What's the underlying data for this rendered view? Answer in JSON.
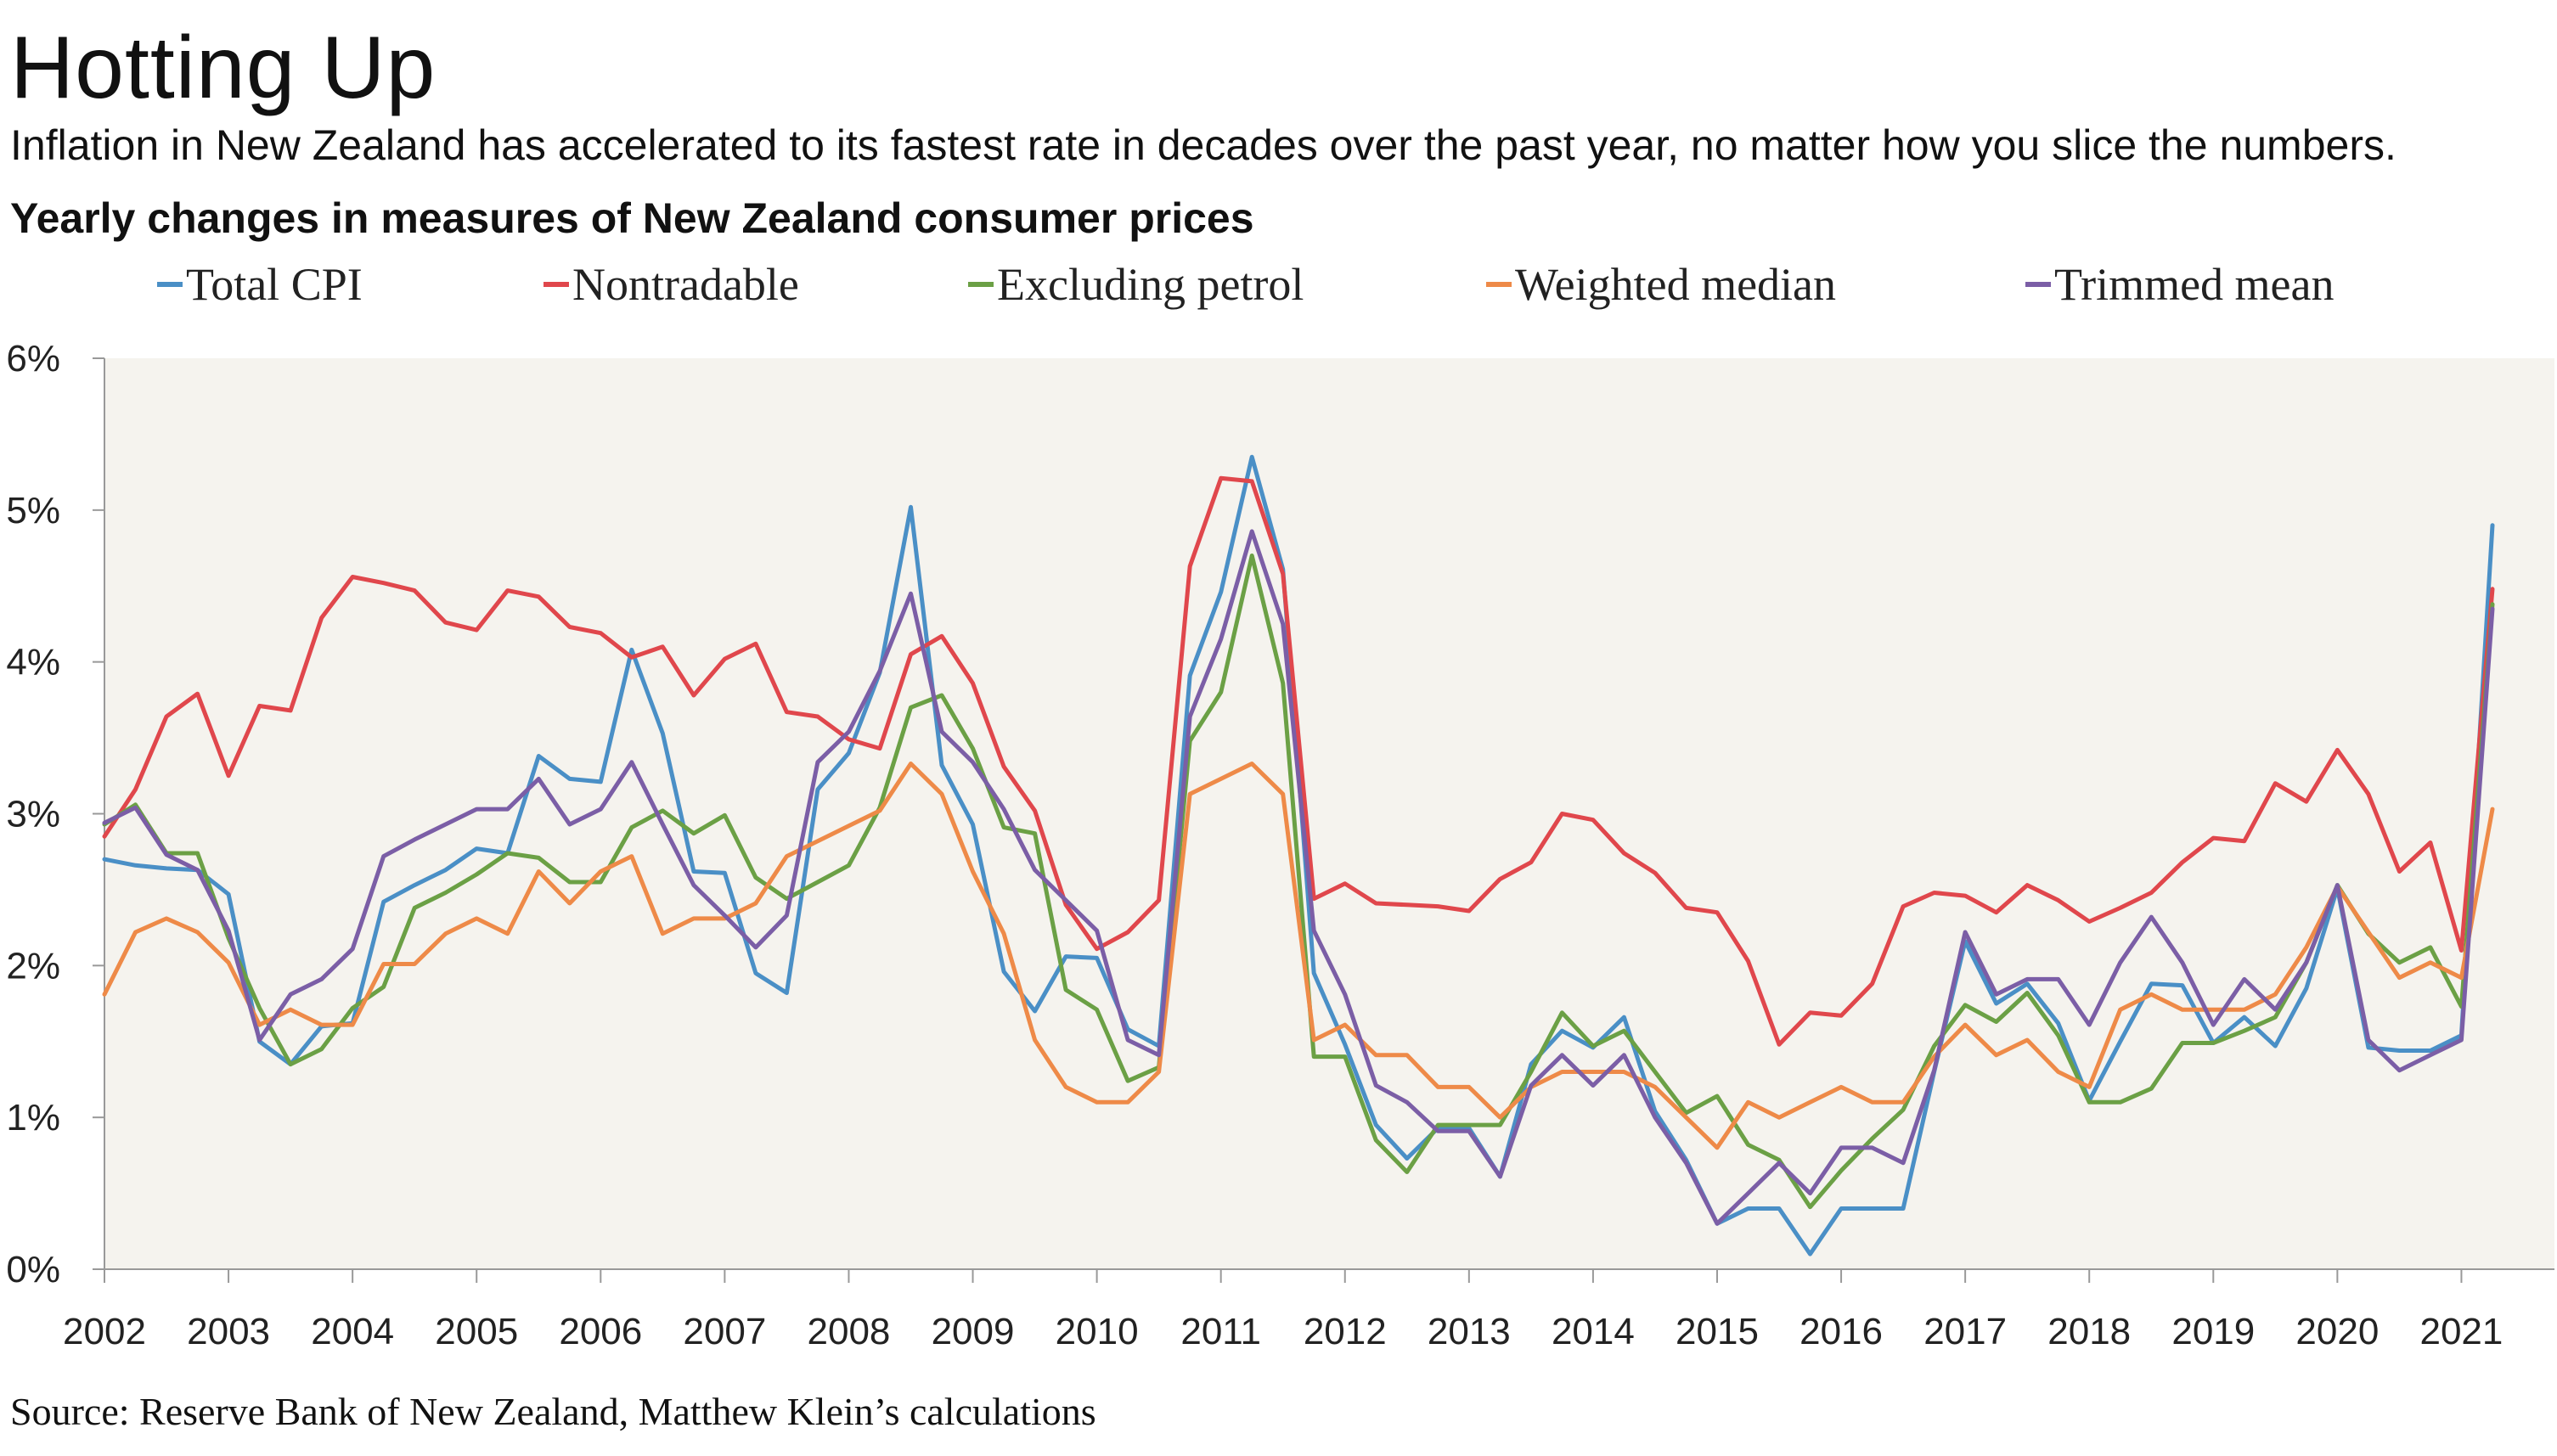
{
  "title": "Hotting Up",
  "subtitle": "Inflation in New Zealand has accelerated to its fastest rate in decades over the past year, no matter how you slice the numbers.",
  "source": "Source: Reserve Bank of New Zealand, Matthew Klein’s calculations",
  "colors": {
    "plot_background": "#f5f3ee",
    "axis": "#999999",
    "total_cpi": "#4a8fc6",
    "nontradable": "#e0474c",
    "excluding_petrol": "#6ba045",
    "weighted_median": "#ee8a48",
    "trimmed_mean": "#7b5ea6"
  },
  "chart_data": {
    "type": "line",
    "title": "Yearly changes in measures of New Zealand consumer prices",
    "xlabel": "",
    "ylabel": "",
    "xlim": [
      2002.0,
      2021.75
    ],
    "ylim": [
      0,
      6
    ],
    "y_ticks": [
      {
        "value": 0,
        "label": "0%"
      },
      {
        "value": 1,
        "label": "1%"
      },
      {
        "value": 2,
        "label": "2%"
      },
      {
        "value": 3,
        "label": "3%"
      },
      {
        "value": 4,
        "label": "4%"
      },
      {
        "value": 5,
        "label": "5%"
      },
      {
        "value": 6,
        "label": "6%"
      }
    ],
    "x_ticks": [
      {
        "value": 2002,
        "label": "2002"
      },
      {
        "value": 2003,
        "label": "2003"
      },
      {
        "value": 2004,
        "label": "2004"
      },
      {
        "value": 2005,
        "label": "2005"
      },
      {
        "value": 2006,
        "label": "2006"
      },
      {
        "value": 2007,
        "label": "2007"
      },
      {
        "value": 2008,
        "label": "2008"
      },
      {
        "value": 2009,
        "label": "2009"
      },
      {
        "value": 2010,
        "label": "2010"
      },
      {
        "value": 2011,
        "label": "2011"
      },
      {
        "value": 2012,
        "label": "2012"
      },
      {
        "value": 2013,
        "label": "2013"
      },
      {
        "value": 2014,
        "label": "2014"
      },
      {
        "value": 2015,
        "label": "2015"
      },
      {
        "value": 2016,
        "label": "2016"
      },
      {
        "value": 2017,
        "label": "2017"
      },
      {
        "value": 2018,
        "label": "2018"
      },
      {
        "value": 2019,
        "label": "2019"
      },
      {
        "value": 2020,
        "label": "2020"
      },
      {
        "value": 2021,
        "label": "2021"
      }
    ],
    "legend_position": "top",
    "x_start": 2002.0,
    "x_step": 0.25,
    "series": [
      {
        "key": "total_cpi",
        "name": "Total CPI",
        "values": [
          2.7,
          2.66,
          2.64,
          2.63,
          2.47,
          1.5,
          1.35,
          1.6,
          1.62,
          2.42,
          2.53,
          2.63,
          2.77,
          2.74,
          3.38,
          3.23,
          3.21,
          4.08,
          3.53,
          2.62,
          2.61,
          1.95,
          1.82,
          3.16,
          3.4,
          3.93,
          5.02,
          3.32,
          2.93,
          1.96,
          1.7,
          2.06,
          2.05,
          1.58,
          1.47,
          3.91,
          4.46,
          5.35,
          4.61,
          1.95,
          1.48,
          0.95,
          0.73,
          0.93,
          0.93,
          0.61,
          1.35,
          1.57,
          1.46,
          1.66,
          1.04,
          0.72,
          0.3,
          0.4,
          0.4,
          0.1,
          0.4,
          0.4,
          0.4,
          1.3,
          2.16,
          1.75,
          1.88,
          1.62,
          1.11,
          1.5,
          1.88,
          1.87,
          1.49,
          1.66,
          1.47,
          1.85,
          2.51,
          1.46,
          1.44,
          1.44,
          1.54,
          4.9
        ]
      },
      {
        "key": "nontradable",
        "name": "Nontradable",
        "values": [
          2.85,
          3.16,
          3.64,
          3.79,
          3.25,
          3.71,
          3.68,
          4.29,
          4.56,
          4.52,
          4.47,
          4.26,
          4.21,
          4.47,
          4.43,
          4.23,
          4.19,
          4.03,
          4.1,
          3.78,
          4.02,
          4.12,
          3.67,
          3.64,
          3.49,
          3.43,
          4.05,
          4.17,
          3.86,
          3.31,
          3.02,
          2.4,
          2.11,
          2.22,
          2.43,
          4.63,
          5.21,
          5.19,
          4.58,
          2.44,
          2.54,
          2.41,
          2.4,
          2.39,
          2.36,
          2.57,
          2.68,
          3.0,
          2.96,
          2.74,
          2.61,
          2.38,
          2.35,
          2.03,
          1.48,
          1.69,
          1.67,
          1.88,
          2.39,
          2.48,
          2.46,
          2.35,
          2.53,
          2.43,
          2.29,
          2.38,
          2.48,
          2.68,
          2.84,
          2.82,
          3.2,
          3.08,
          3.42,
          3.13,
          2.62,
          2.81,
          2.1,
          4.48
        ]
      },
      {
        "key": "excluding_petrol",
        "name": "Excluding petrol",
        "values": [
          2.93,
          3.06,
          2.74,
          2.74,
          2.18,
          1.72,
          1.35,
          1.45,
          1.72,
          1.86,
          2.38,
          2.48,
          2.6,
          2.74,
          2.71,
          2.55,
          2.55,
          2.91,
          3.02,
          2.87,
          2.99,
          2.58,
          2.44,
          2.55,
          2.66,
          3.04,
          3.7,
          3.78,
          3.43,
          2.91,
          2.87,
          1.84,
          1.71,
          1.24,
          1.33,
          3.48,
          3.8,
          4.7,
          3.86,
          1.4,
          1.4,
          0.85,
          0.64,
          0.95,
          0.95,
          0.95,
          1.3,
          1.69,
          1.47,
          1.57,
          1.3,
          1.03,
          1.14,
          0.82,
          0.72,
          0.41,
          0.65,
          0.86,
          1.05,
          1.47,
          1.74,
          1.63,
          1.82,
          1.54,
          1.1,
          1.1,
          1.19,
          1.49,
          1.49,
          1.57,
          1.66,
          2.02,
          2.53,
          2.21,
          2.02,
          2.12,
          1.73,
          4.38
        ]
      },
      {
        "key": "weighted_median",
        "name": "Weighted median",
        "values": [
          1.81,
          2.22,
          2.31,
          2.22,
          2.02,
          1.61,
          1.71,
          1.61,
          1.61,
          2.01,
          2.01,
          2.21,
          2.31,
          2.21,
          2.62,
          2.41,
          2.62,
          2.72,
          2.21,
          2.31,
          2.31,
          2.41,
          2.72,
          2.82,
          2.92,
          3.02,
          3.33,
          3.13,
          2.62,
          2.21,
          1.51,
          1.2,
          1.1,
          1.1,
          1.3,
          3.13,
          3.23,
          3.33,
          3.13,
          1.51,
          1.61,
          1.41,
          1.41,
          1.2,
          1.2,
          1.0,
          1.2,
          1.3,
          1.3,
          1.3,
          1.2,
          1.0,
          0.8,
          1.1,
          1.0,
          1.1,
          1.2,
          1.1,
          1.1,
          1.4,
          1.61,
          1.41,
          1.51,
          1.3,
          1.2,
          1.71,
          1.81,
          1.71,
          1.71,
          1.71,
          1.81,
          2.12,
          2.52,
          2.22,
          1.92,
          2.02,
          1.92,
          3.03
        ]
      },
      {
        "key": "trimmed_mean",
        "name": "Trimmed mean",
        "values": [
          2.94,
          3.04,
          2.73,
          2.63,
          2.23,
          1.51,
          1.81,
          1.91,
          2.11,
          2.72,
          2.83,
          2.93,
          3.03,
          3.03,
          3.23,
          2.93,
          3.03,
          3.34,
          2.93,
          2.53,
          2.33,
          2.12,
          2.33,
          3.34,
          3.54,
          3.94,
          4.45,
          3.54,
          3.34,
          3.03,
          2.63,
          2.43,
          2.23,
          1.51,
          1.41,
          3.64,
          4.15,
          4.86,
          4.25,
          2.23,
          1.81,
          1.21,
          1.1,
          0.91,
          0.91,
          0.61,
          1.21,
          1.41,
          1.21,
          1.41,
          1.0,
          0.7,
          0.3,
          0.5,
          0.7,
          0.5,
          0.8,
          0.8,
          0.7,
          1.31,
          2.22,
          1.81,
          1.91,
          1.91,
          1.61,
          2.02,
          2.32,
          2.02,
          1.61,
          1.91,
          1.71,
          2.02,
          2.53,
          1.51,
          1.31,
          1.41,
          1.51,
          4.35
        ]
      }
    ]
  }
}
